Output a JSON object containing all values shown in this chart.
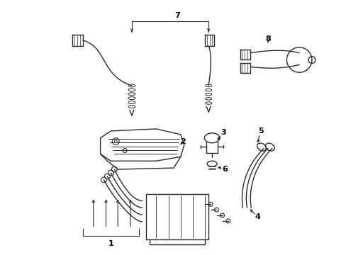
{
  "background_color": "#ffffff",
  "line_color": "#2a2a2a",
  "label_color": "#000000",
  "figsize": [
    4.89,
    3.6
  ],
  "dpi": 100,
  "lw": 1.0
}
